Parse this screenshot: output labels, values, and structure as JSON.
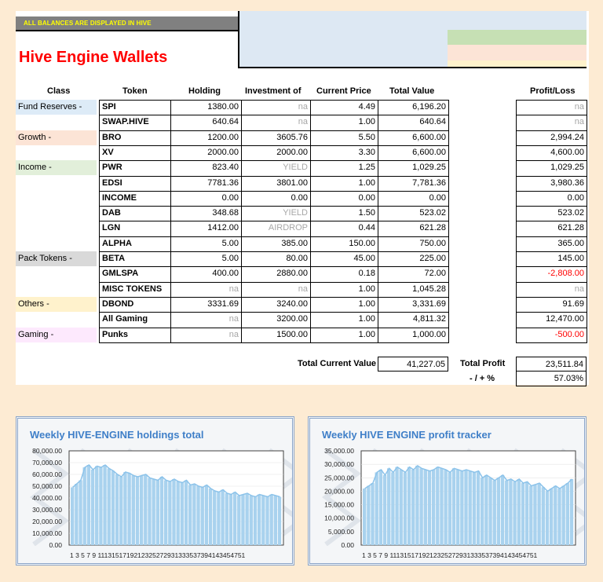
{
  "banner": "ALL BALANCES ARE DISPLAYED IN HIVE",
  "title": "Hive Engine Wallets",
  "colors": {
    "title": "#ff0000",
    "banner_bg": "#808080",
    "banner_text": "#ffff00",
    "swatch_green": "#c6e0b4",
    "swatch_pink": "#fce4d6",
    "swatch_yellow": "#fff2cc",
    "neg": "#ff0000"
  },
  "headers": {
    "class": "Class",
    "token": "Token",
    "holding": "Holding",
    "investment": "Investment of",
    "price": "Current Price",
    "value": "Total Value",
    "pl": "Profit/Loss"
  },
  "classes": [
    {
      "label": "Fund Reserves -",
      "color": "#ddebf7",
      "row": 0
    },
    {
      "label": "Growth -",
      "color": "#fce4d6",
      "row": 2
    },
    {
      "label": "Income -",
      "color": "#e2efda",
      "row": 4
    },
    {
      "label": "Pack Tokens -",
      "color": "#d9d9d9",
      "row": 10
    },
    {
      "label": "Others -",
      "color": "#fff2cc",
      "row": 13
    },
    {
      "label": "Gaming -",
      "color": "#fde9fd",
      "row": 15
    }
  ],
  "rows": [
    {
      "token": "SPI",
      "holding": "1380.00",
      "investment": "na",
      "price": "4.49",
      "value": "6,196.20",
      "pl": "na"
    },
    {
      "token": "SWAP.HIVE",
      "holding": "640.64",
      "investment": "na",
      "price": "1.00",
      "value": "640.64",
      "pl": "na"
    },
    {
      "token": "BRO",
      "holding": "1200.00",
      "investment": "3605.76",
      "price": "5.50",
      "value": "6,600.00",
      "pl": "2,994.24"
    },
    {
      "token": "XV",
      "holding": "2000.00",
      "investment": "2000.00",
      "price": "3.30",
      "value": "6,600.00",
      "pl": "4,600.00"
    },
    {
      "token": "PWR",
      "holding": "823.40",
      "investment": "YIELD",
      "price": "1.25",
      "value": "1,029.25",
      "pl": "1,029.25"
    },
    {
      "token": "EDSI",
      "holding": "7781.36",
      "investment": "3801.00",
      "price": "1.00",
      "value": "7,781.36",
      "pl": "3,980.36"
    },
    {
      "token": "INCOME",
      "holding": "0.00",
      "investment": "0.00",
      "price": "0.00",
      "value": "0.00",
      "pl": "0.00"
    },
    {
      "token": "DAB",
      "holding": "348.68",
      "investment": "YIELD",
      "price": "1.50",
      "value": "523.02",
      "pl": "523.02"
    },
    {
      "token": "LGN",
      "holding": "1412.00",
      "investment": "AIRDROP",
      "price": "0.44",
      "value": "621.28",
      "pl": "621.28"
    },
    {
      "token": "ALPHA",
      "holding": "5.00",
      "investment": "385.00",
      "price": "150.00",
      "value": "750.00",
      "pl": "365.00"
    },
    {
      "token": "BETA",
      "holding": "5.00",
      "investment": "80.00",
      "price": "45.00",
      "value": "225.00",
      "pl": "145.00"
    },
    {
      "token": "GMLSPA",
      "holding": "400.00",
      "investment": "2880.00",
      "price": "0.18",
      "value": "72.00",
      "pl": "-2,808.00"
    },
    {
      "token": "MISC TOKENS",
      "holding": "na",
      "investment": "na",
      "price": "1.00",
      "value": "1,045.28",
      "pl": "na"
    },
    {
      "token": "DBOND",
      "holding": "3331.69",
      "investment": "3240.00",
      "price": "1.00",
      "value": "3,331.69",
      "pl": "91.69"
    },
    {
      "token": "All Gaming",
      "holding": "na",
      "investment": "3200.00",
      "price": "1.00",
      "value": "4,811.32",
      "pl": "12,470.00"
    },
    {
      "token": "Punks",
      "holding": "na",
      "investment": "1500.00",
      "price": "1.00",
      "value": "1,000.00",
      "pl": "-500.00"
    }
  ],
  "totals": {
    "current_value_label": "Total Current Value",
    "current_value": "41,227.05",
    "profit_label": "Total Profit",
    "profit": "23,511.84",
    "pct_label": "- / + %",
    "pct": "57.03%"
  },
  "chart_data": [
    {
      "type": "bar",
      "title": "Weekly HIVE-ENGINE holdings total",
      "ylim": [
        0,
        80000
      ],
      "yticks": [
        "0.00",
        "10,000.00",
        "20,000.00",
        "30,000.00",
        "40,000.00",
        "50,000.00",
        "60,000.00",
        "70,000.00",
        "80,000.00"
      ],
      "xtick_label": "1 3 5 7 9 1113151719212325272931333537394143454751",
      "categories": [
        1,
        2,
        3,
        4,
        5,
        6,
        7,
        8,
        9,
        10,
        11,
        12,
        13,
        14,
        15,
        16,
        17,
        18,
        19,
        20,
        21,
        22,
        23,
        24,
        25,
        26,
        27,
        28,
        29,
        30,
        31,
        32,
        33,
        34,
        35,
        36,
        37,
        38,
        39,
        40,
        41,
        42,
        43,
        44,
        45,
        46,
        47,
        48,
        49,
        50,
        51,
        52
      ],
      "values": [
        49000,
        52000,
        55000,
        66000,
        68000,
        64000,
        67000,
        66000,
        68000,
        65000,
        63000,
        60000,
        58000,
        62000,
        61000,
        59000,
        58000,
        59000,
        60000,
        57000,
        56000,
        55000,
        58000,
        55000,
        54000,
        56000,
        54000,
        53000,
        55000,
        51000,
        52000,
        50000,
        49000,
        51000,
        48000,
        46000,
        45000,
        47000,
        44000,
        43000,
        45000,
        42000,
        43000,
        44000,
        42000,
        41000,
        43000,
        42000,
        41000,
        43000,
        42000,
        41000
      ]
    },
    {
      "type": "bar",
      "title": "Weekly HIVE ENGINE profit tracker",
      "ylim": [
        0,
        35000
      ],
      "yticks": [
        "0.00",
        "5,000.00",
        "10,000.00",
        "15,000.00",
        "20,000.00",
        "25,000.00",
        "30,000.00",
        "35,000.00"
      ],
      "xtick_label": "1 3 5 7 9 1113151719212325272931333537394143454751",
      "categories": [
        1,
        2,
        3,
        4,
        5,
        6,
        7,
        8,
        9,
        10,
        11,
        12,
        13,
        14,
        15,
        16,
        17,
        18,
        19,
        20,
        21,
        22,
        23,
        24,
        25,
        26,
        27,
        28,
        29,
        30,
        31,
        32,
        33,
        34,
        35,
        36,
        37,
        38,
        39,
        40,
        41,
        42,
        43,
        44,
        45,
        46,
        47,
        48,
        49,
        50,
        51,
        52
      ],
      "values": [
        21000,
        22000,
        23000,
        27000,
        28000,
        26000,
        28500,
        27000,
        29000,
        28000,
        27000,
        29000,
        28000,
        29500,
        28500,
        28000,
        27500,
        28000,
        29000,
        28500,
        28000,
        27000,
        28500,
        28000,
        27500,
        28000,
        27500,
        27000,
        27500,
        25000,
        26000,
        25000,
        24000,
        25000,
        26000,
        24000,
        24500,
        23500,
        24500,
        23000,
        23500,
        22000,
        22500,
        23000,
        21500,
        20000,
        21000,
        22000,
        21000,
        22000,
        23000,
        24500
      ]
    }
  ]
}
